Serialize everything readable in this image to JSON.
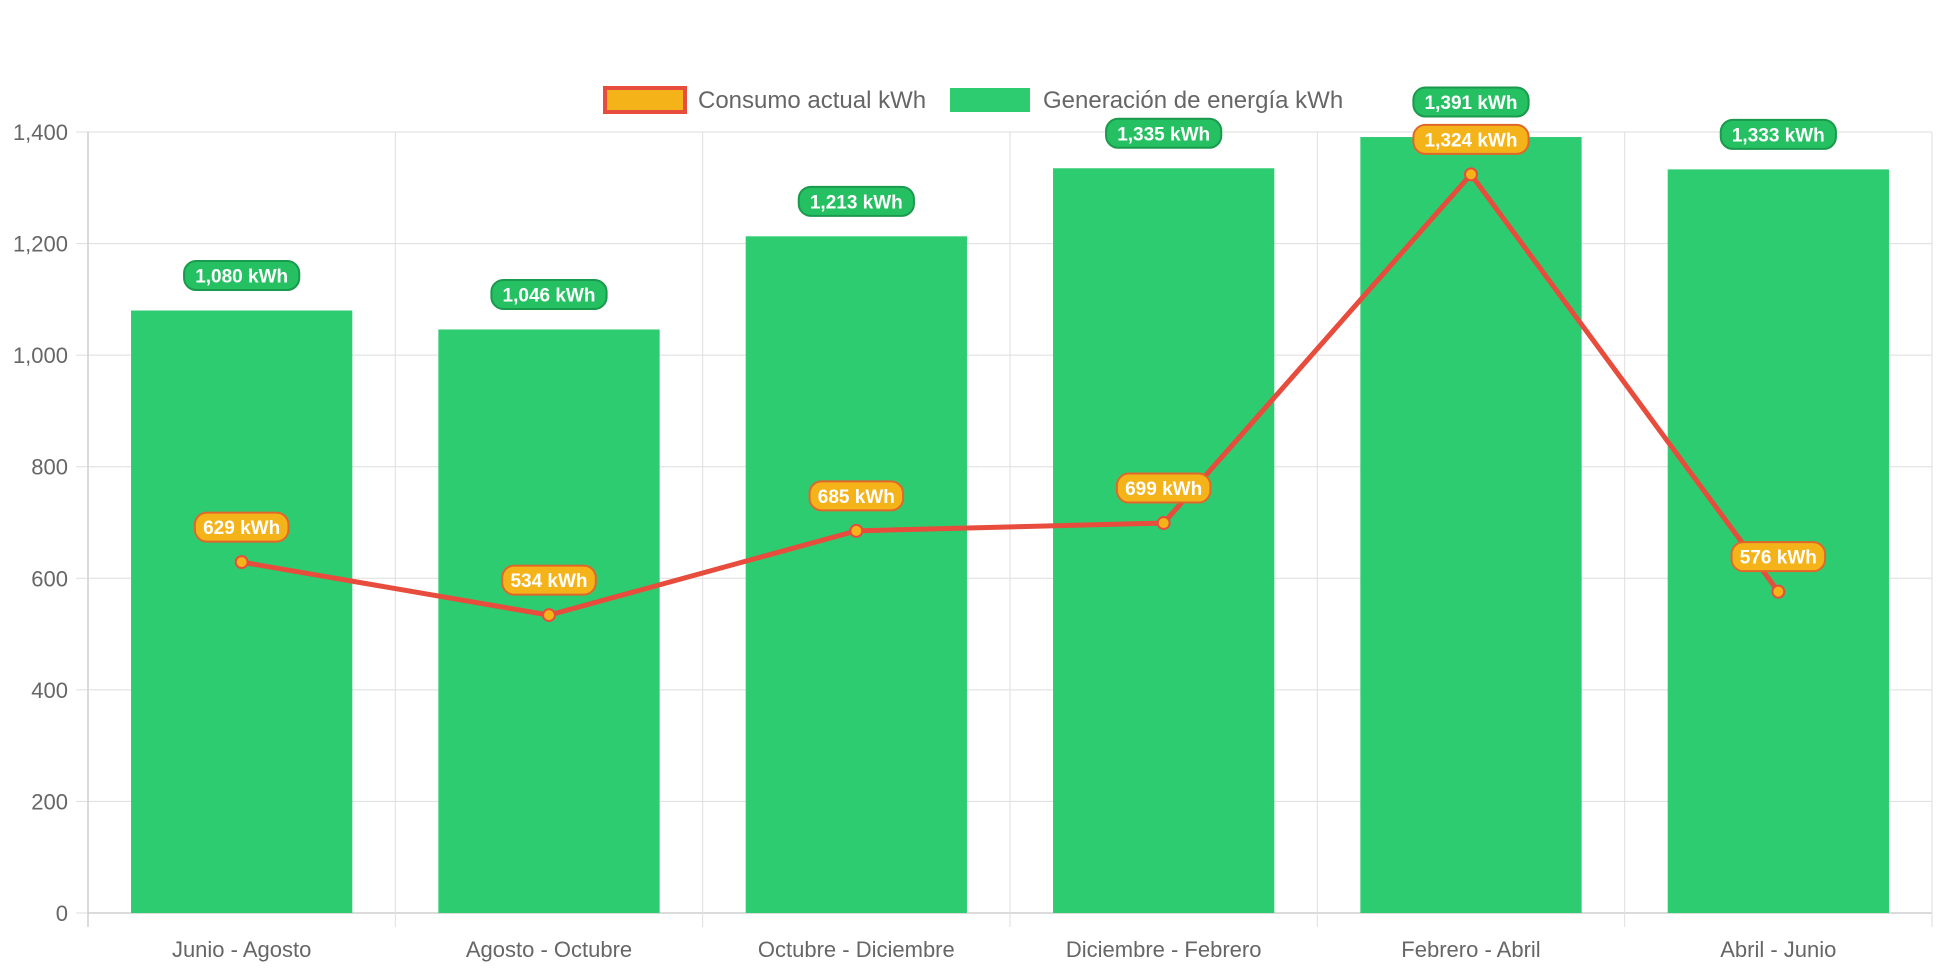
{
  "chart_data": {
    "type": "bar",
    "categories": [
      "Junio - Agosto",
      "Agosto - Octubre",
      "Octubre - Diciembre",
      "Diciembre - Febrero",
      "Febrero - Abril",
      "Abril - Junio"
    ],
    "ylim": [
      0,
      1400
    ],
    "yticks": [
      "0",
      "200",
      "400",
      "600",
      "800",
      "1,000",
      "1,200",
      "1,400"
    ],
    "grid": true,
    "legend_position": "top",
    "series": [
      {
        "name": "Consumo actual kWh",
        "type": "line",
        "color": "#e74c3c",
        "marker_color": "#f5b31a",
        "values": [
          629,
          534,
          685,
          699,
          1324,
          576
        ],
        "labels": [
          "629 kWh",
          "534 kWh",
          "685 kWh",
          "699 kWh",
          "1,324 kWh",
          "576 kWh"
        ]
      },
      {
        "name": "Generación de energía kWh",
        "type": "bar",
        "color": "#2ecc71",
        "values": [
          1080,
          1046,
          1213,
          1335,
          1391,
          1333
        ],
        "labels": [
          "1,080 kWh",
          "1,046 kWh",
          "1,213 kWh",
          "1,335 kWh",
          "1,391 kWh",
          "1,333 kWh"
        ]
      }
    ]
  }
}
